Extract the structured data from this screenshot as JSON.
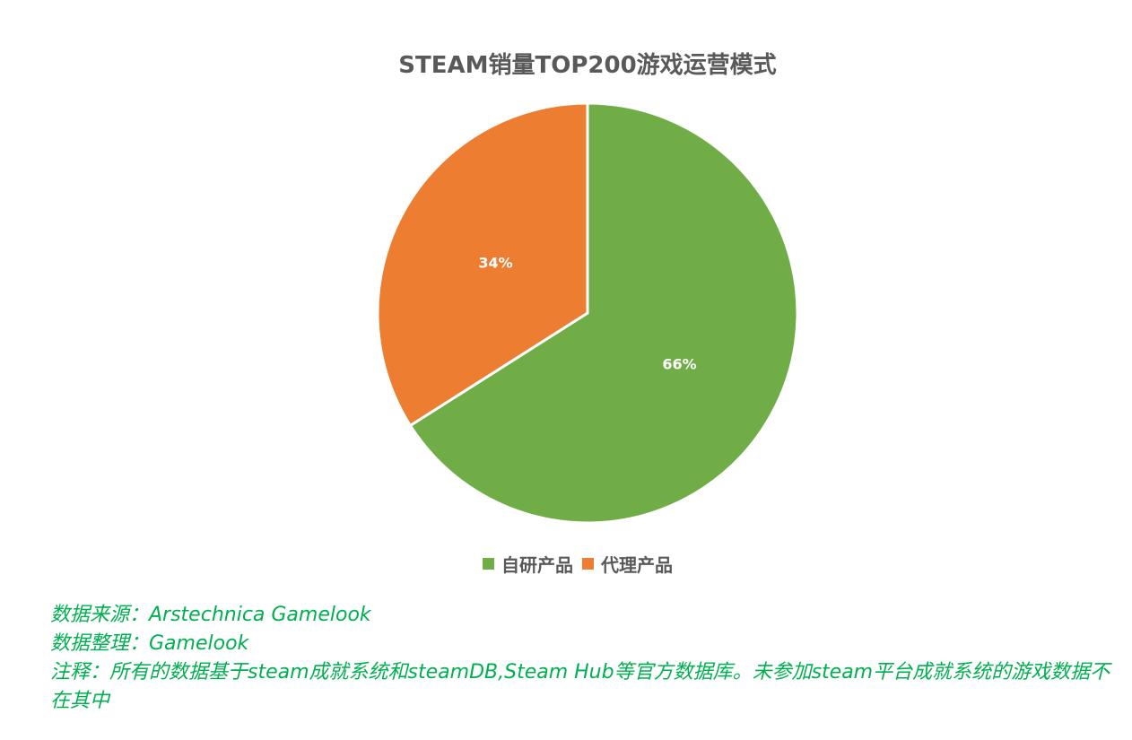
{
  "chart_data": {
    "type": "pie",
    "title": "STEAM销量TOP200游戏运营模式",
    "categories": [
      "自研产品",
      "代理产品"
    ],
    "values": [
      66,
      34
    ],
    "labels": [
      "66%",
      "34%"
    ],
    "colors": [
      "#70ad47",
      "#ed7d31"
    ],
    "legend_position": "bottom"
  },
  "notes": {
    "source": "数据来源：Arstechnica  Gamelook",
    "compiled_by": "数据整理：Gamelook",
    "remark": "注释：所有的数据基于steam成就系统和steamDB,Steam Hub等官方数据库。未参加steam平台成就系统的游戏数据不在其中"
  }
}
